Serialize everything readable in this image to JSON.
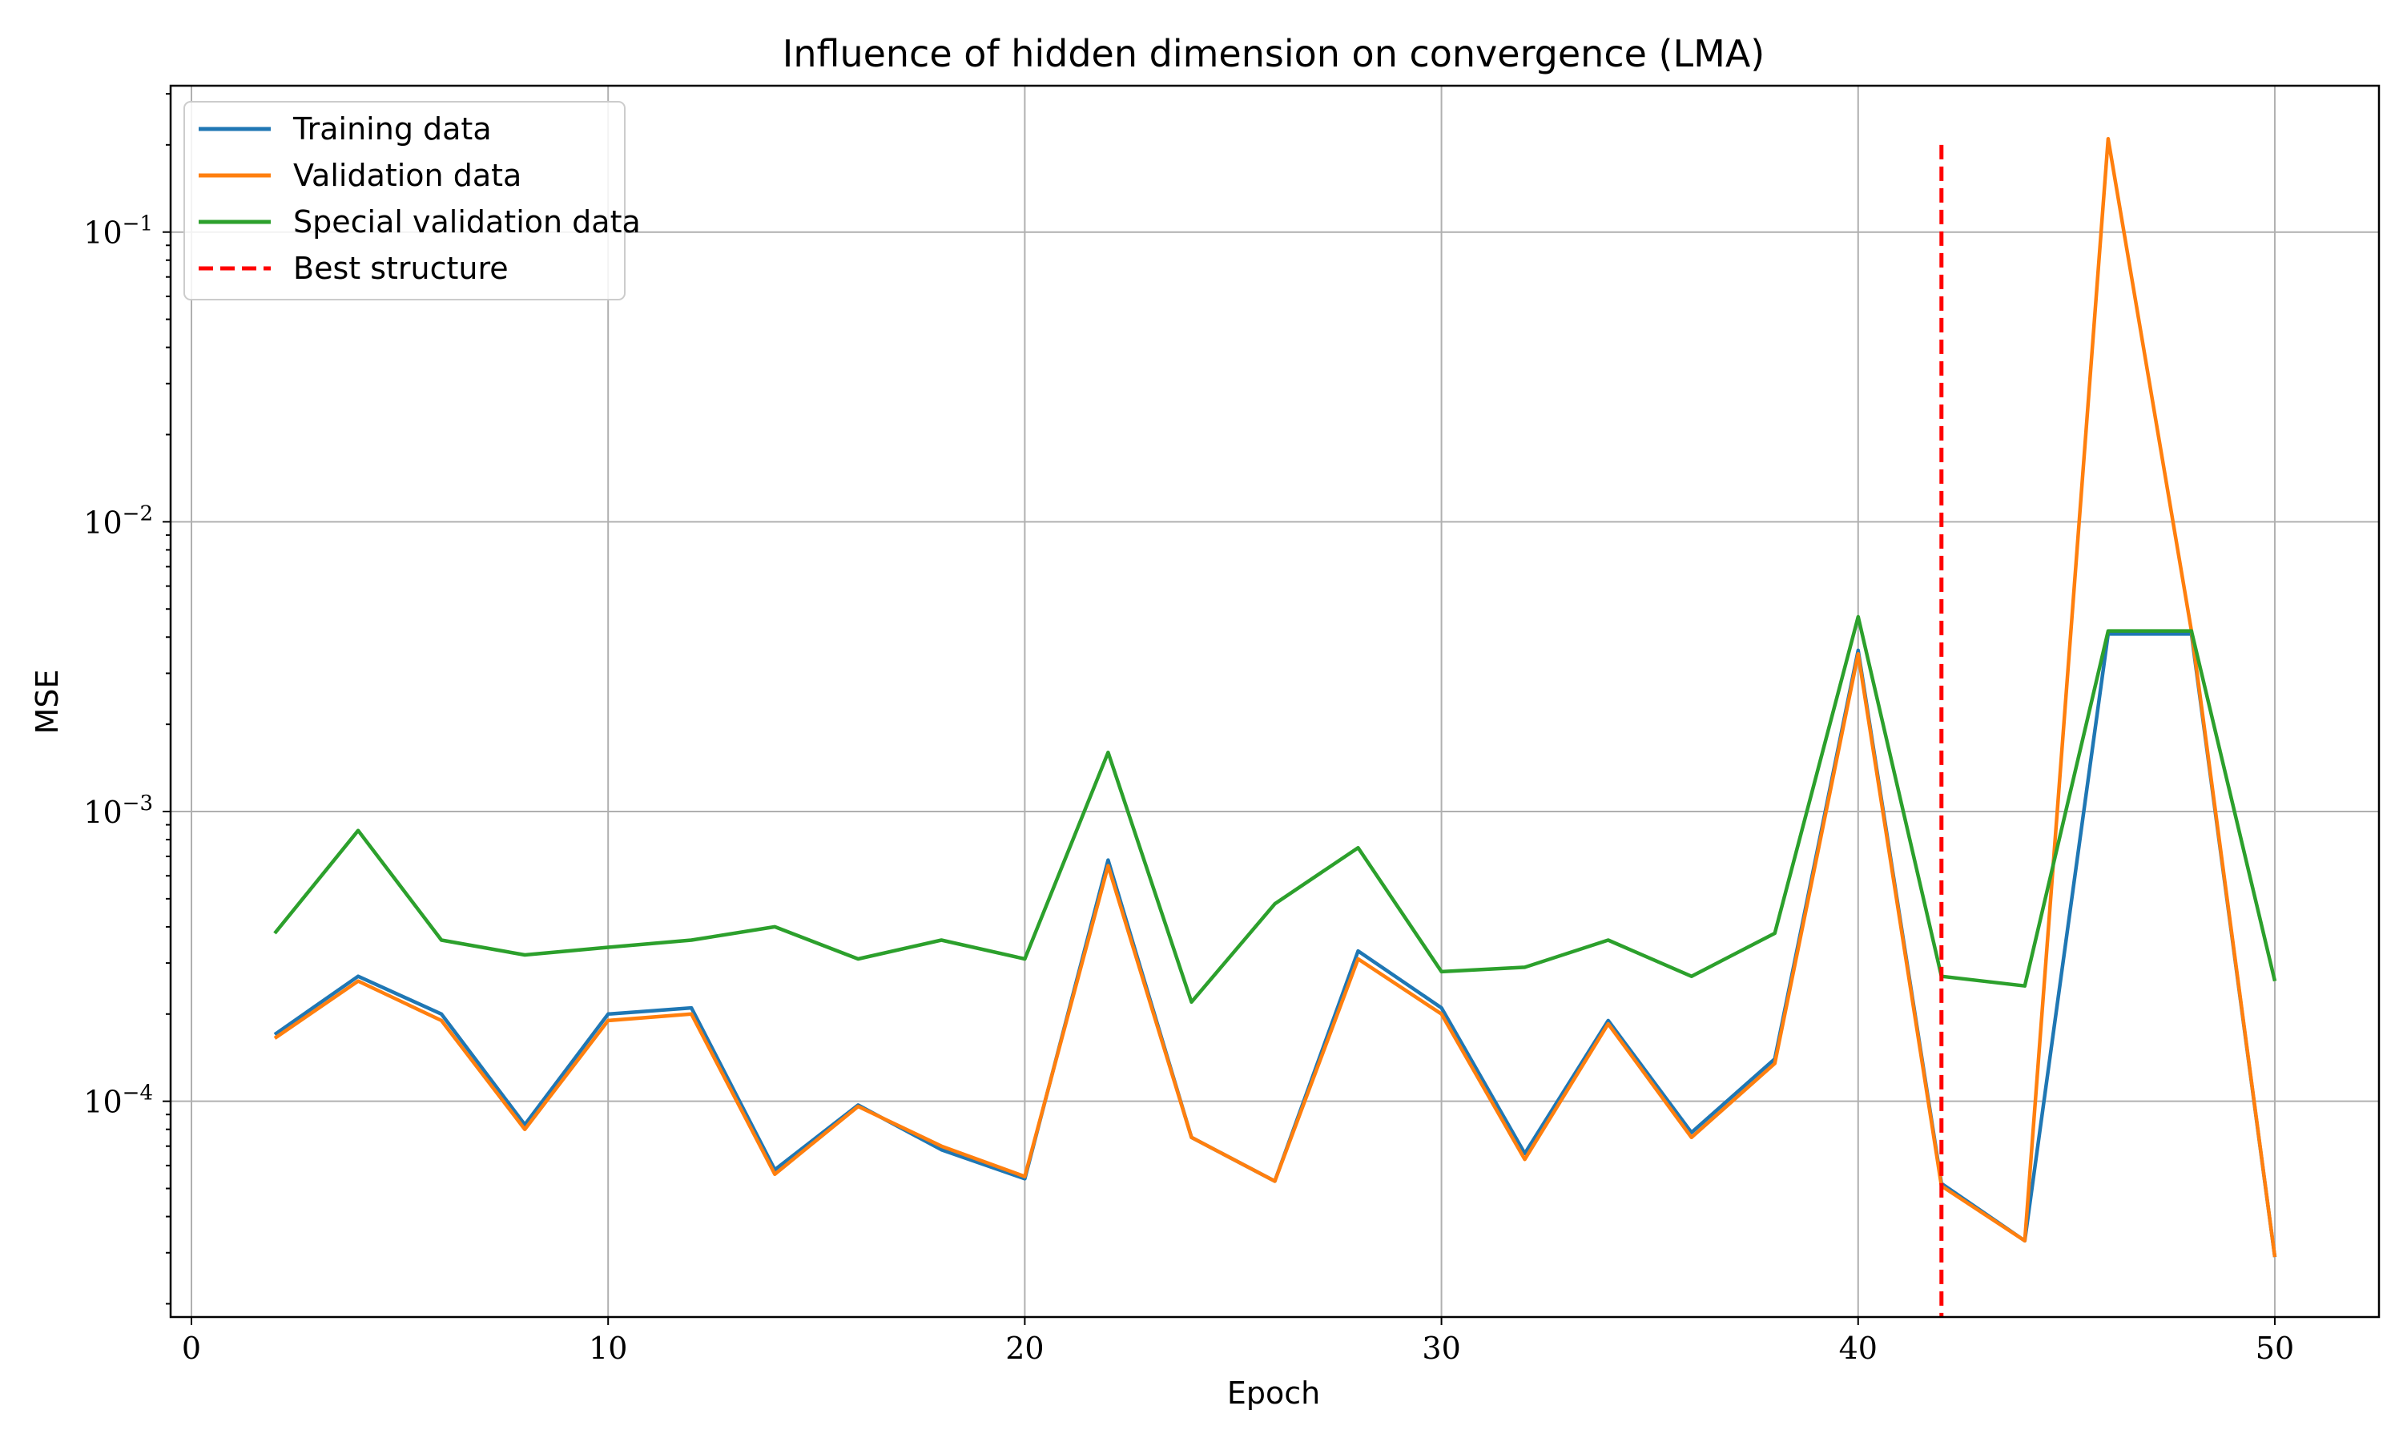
{
  "chart_data": {
    "type": "line",
    "title": "Influence of hidden dimension on convergence (LMA)",
    "xlabel": "Epoch",
    "ylabel": "MSE",
    "xlim": [
      -0.5,
      52.5
    ],
    "ylim": [
      1.8e-05,
      0.32
    ],
    "yscale": "log",
    "grid": true,
    "legend_position": "upper-left",
    "x_ticks": [
      0,
      10,
      20,
      30,
      40,
      50
    ],
    "y_ticks": [
      {
        "value": 0.0001,
        "base": "10",
        "exp": "−4"
      },
      {
        "value": 0.001,
        "base": "10",
        "exp": "−3"
      },
      {
        "value": 0.01,
        "base": "10",
        "exp": "−2"
      },
      {
        "value": 0.1,
        "base": "10",
        "exp": "−1"
      }
    ],
    "x": [
      2,
      4,
      6,
      8,
      10,
      12,
      14,
      16,
      18,
      20,
      22,
      24,
      26,
      28,
      30,
      32,
      34,
      36,
      38,
      40,
      42,
      44,
      46,
      48,
      50
    ],
    "series": [
      {
        "name": "Training data",
        "color": "#1f77b4",
        "values": [
          0.00017,
          0.00027,
          0.0002,
          8.3e-05,
          0.0002,
          0.00021,
          5.8e-05,
          9.7e-05,
          6.8e-05,
          5.4e-05,
          0.00068,
          7.5e-05,
          5.3e-05,
          0.00033,
          0.00021,
          6.6e-05,
          0.00019,
          7.8e-05,
          0.00014,
          0.0036,
          5.2e-05,
          3.3e-05,
          0.0041,
          0.0041,
          2.9e-05
        ]
      },
      {
        "name": "Validation data",
        "color": "#ff7f0e",
        "values": [
          0.000165,
          0.00026,
          0.00019,
          8e-05,
          0.00019,
          0.0002,
          5.6e-05,
          9.6e-05,
          7e-05,
          5.5e-05,
          0.00065,
          7.5e-05,
          5.3e-05,
          0.00031,
          0.0002,
          6.3e-05,
          0.000185,
          7.5e-05,
          0.000135,
          0.0035,
          5.1e-05,
          3.3e-05,
          0.21,
          0.0042,
          2.9e-05
        ]
      },
      {
        "name": "Special validation data",
        "color": "#2ca02c",
        "values": [
          0.00038,
          0.00086,
          0.00036,
          0.00032,
          0.00034,
          0.00036,
          0.0004,
          0.00031,
          0.00036,
          0.00031,
          0.0016,
          0.00022,
          0.00048,
          0.00075,
          0.00028,
          0.00029,
          0.00036,
          0.00027,
          0.00038,
          0.0047,
          0.00027,
          0.00025,
          0.0042,
          0.0042,
          0.00026
        ]
      }
    ],
    "best_structure": {
      "name": "Best structure",
      "color": "#ff0000",
      "x": 42,
      "y_range": [
        1.8e-05,
        0.2
      ]
    }
  }
}
